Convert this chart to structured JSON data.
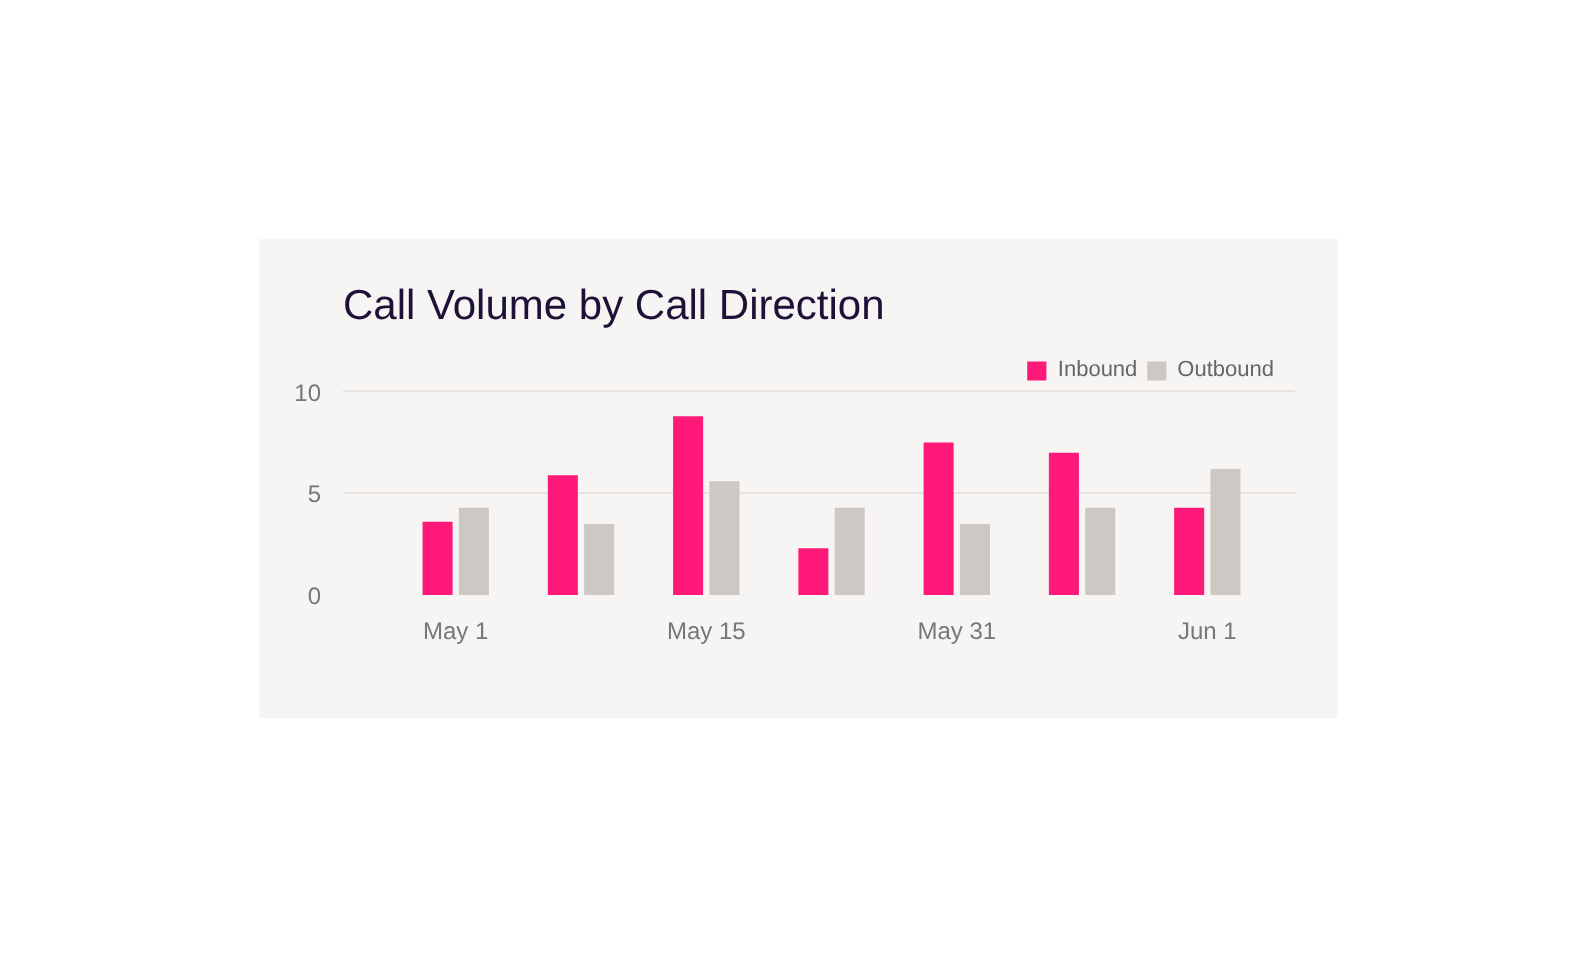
{
  "chart_data": {
    "type": "bar",
    "title": "Call Volume by Call Direction",
    "categories": [
      "May 1",
      null,
      "May 15",
      null,
      "May 31",
      null,
      "Jun 1"
    ],
    "series": [
      {
        "name": "Inbound",
        "color": "#ff1a7a",
        "values": [
          3.6,
          5.9,
          8.8,
          2.3,
          7.5,
          7.0,
          4.3
        ]
      },
      {
        "name": "Outbound",
        "color": "#cdc8c3",
        "values": [
          4.3,
          3.5,
          5.6,
          4.3,
          3.5,
          4.3,
          6.2
        ]
      }
    ],
    "ylim": [
      0,
      12.6
    ],
    "yticks": [
      0,
      5,
      10
    ],
    "grid": "y",
    "legend": "top right"
  }
}
